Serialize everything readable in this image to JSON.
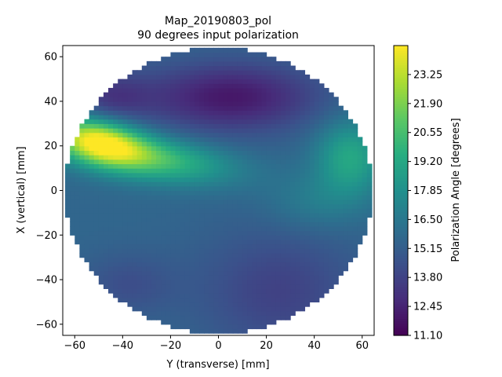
{
  "chart_data": {
    "type": "heatmap",
    "title_line1": "Map_20190803_pol",
    "title_line2": "90 degrees input polarization",
    "xlabel": "Y (transverse) [mm]",
    "ylabel": "X (vertical) [mm]",
    "xlim": [
      -65,
      65
    ],
    "ylim": [
      -65,
      65
    ],
    "xticks": [
      -60,
      -40,
      -20,
      0,
      20,
      40,
      60
    ],
    "yticks": [
      -60,
      -40,
      -20,
      0,
      20,
      40,
      60
    ],
    "circle_radius_mm": 64,
    "colormap": "viridis",
    "colorbar": {
      "label": "Polarization Angle [degrees]",
      "min": 11.1,
      "max": 24.6,
      "ticks": [
        "11.10",
        "12.45",
        "13.80",
        "15.15",
        "16.50",
        "17.85",
        "19.20",
        "20.55",
        "21.90",
        "23.25"
      ]
    },
    "features": [
      {
        "x": -50,
        "y": 22,
        "sx": 14,
        "sy": 7,
        "angle_deg": -14,
        "amp": 8.5
      },
      {
        "x": -25,
        "y": 14,
        "sx": 22,
        "sy": 7,
        "angle_deg": -8,
        "amp": 4.5
      },
      {
        "x": 55,
        "y": 15,
        "sx": 10,
        "sy": 12,
        "angle_deg": 0,
        "amp": 3.6
      },
      {
        "x": 5,
        "y": 42,
        "sx": 26,
        "sy": 11,
        "angle_deg": 0,
        "amp": -3.6
      },
      {
        "x": -45,
        "y": 42,
        "sx": 12,
        "sy": 8,
        "angle_deg": 0,
        "amp": -2.0
      },
      {
        "x": 25,
        "y": -45,
        "sx": 24,
        "sy": 20,
        "angle_deg": 0,
        "amp": -1.8
      },
      {
        "x": -38,
        "y": -42,
        "sx": 14,
        "sy": 10,
        "angle_deg": 0,
        "amp": -1.2
      },
      {
        "x": 40,
        "y": -5,
        "sx": 14,
        "sy": 9,
        "angle_deg": 0,
        "amp": 1.2
      }
    ],
    "base_value": 15.6
  }
}
